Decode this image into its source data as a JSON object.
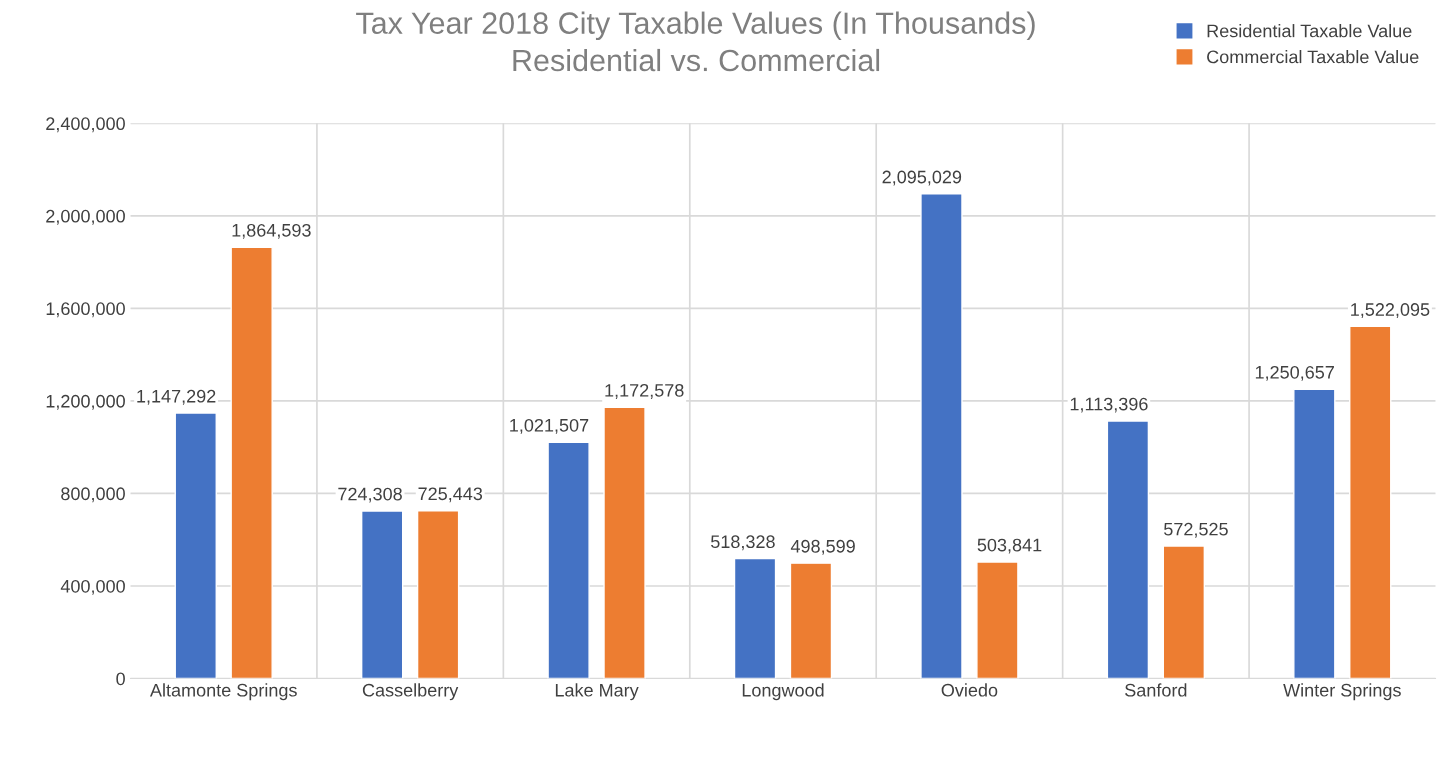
{
  "chart_data": {
    "type": "bar",
    "title": "Tax Year 2018 City Taxable Values (In Thousands)\nResidential vs. Commercial",
    "categories": [
      "Altamonte Springs",
      "Casselberry",
      "Lake Mary",
      "Longwood",
      "Oviedo",
      "Sanford",
      "Winter Springs"
    ],
    "series": [
      {
        "name": "Residential Taxable Value",
        "color": "#4472c4",
        "values": [
          1147292,
          724308,
          1021507,
          518328,
          2095029,
          1113396,
          1250657
        ],
        "value_labels": [
          "1,147,292",
          "724,308",
          "1,021,507",
          "518,328",
          "2,095,029",
          "1,113,396",
          "1,250,657"
        ]
      },
      {
        "name": "Commercial Taxable Value",
        "color": "#ed7d31",
        "values": [
          1864593,
          725443,
          1172578,
          498599,
          503841,
          572525,
          1522095
        ],
        "value_labels": [
          "1,864,593",
          "725,443",
          "1,172,578",
          "498,599",
          "503,841",
          "572,525",
          "1,522,095"
        ]
      }
    ],
    "ylim": [
      0,
      2400000
    ],
    "yticks": [
      {
        "value": 0,
        "label": "0"
      },
      {
        "value": 400000,
        "label": "400,000"
      },
      {
        "value": 800000,
        "label": "800,000"
      },
      {
        "value": 1200000,
        "label": "1,200,000"
      },
      {
        "value": 1600000,
        "label": "1,600,000"
      },
      {
        "value": 2000000,
        "label": "2,000,000"
      },
      {
        "value": 2400000,
        "label": "2,400,000"
      }
    ],
    "grid": true,
    "legend": "top right"
  }
}
